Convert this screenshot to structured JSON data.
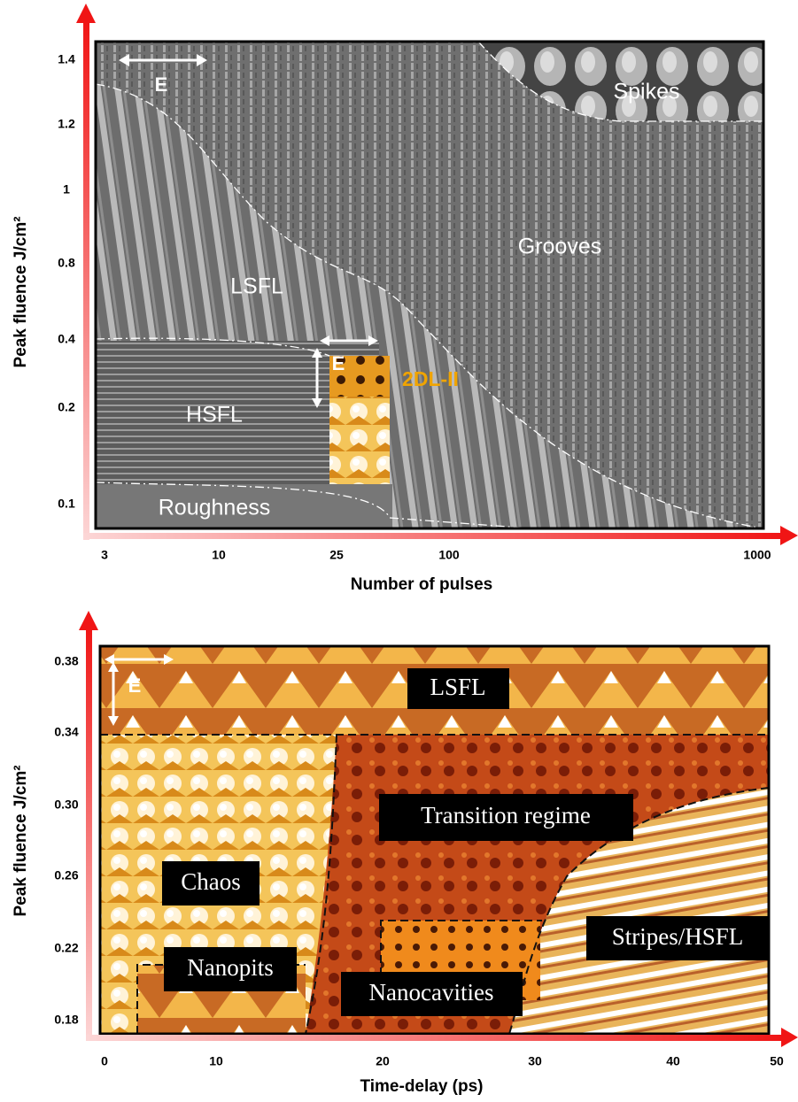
{
  "panels": [
    {
      "y_axis_label": "Peak fluence J/cm²",
      "x_axis_label": "Number of pulses",
      "y_tick_labels": [
        "1.4",
        "1.2",
        "1",
        "0.8",
        "0.4",
        "0.2",
        "0.1"
      ],
      "x_tick_labels": [
        "3",
        "10",
        "25",
        "100",
        "1000"
      ],
      "regions": [
        "Spikes",
        "Grooves",
        "LSFL",
        "HSFL",
        "Roughness",
        "2DL-II"
      ],
      "polarization_labels": [
        "E",
        "E"
      ]
    },
    {
      "y_axis_label": "Peak fluence J/cm²",
      "x_axis_label": "Time-delay (ps)",
      "y_tick_labels": [
        "0.38",
        "0.34",
        "0.30",
        "0.26",
        "0.22",
        "0.18"
      ],
      "x_tick_labels": [
        "0",
        "10",
        "20",
        "30",
        "40",
        "50"
      ],
      "regions": [
        "LSFL",
        "Transition regime",
        "Chaos",
        "Nanopits",
        "Nanocavities",
        "Stripes/HSFL"
      ],
      "polarization_labels": [
        "E"
      ]
    }
  ]
}
